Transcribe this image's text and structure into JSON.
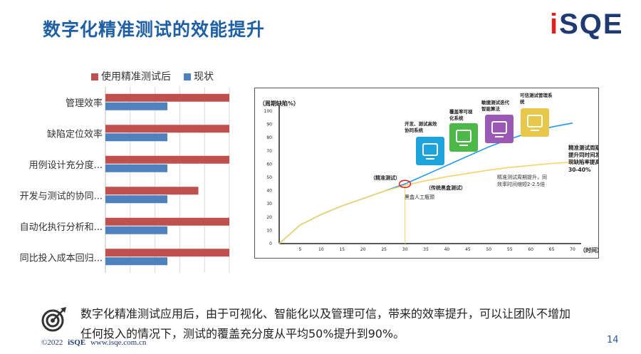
{
  "header": {
    "title": "数字化精准测试的效能提升"
  },
  "logo": {
    "text_main": "iSQE",
    "color": "#1f3a73",
    "dot_color": "#e02020"
  },
  "chart_data": [
    {
      "type": "bar",
      "orientation": "horizontal",
      "categories": [
        "管理效率",
        "缺陷定位效率",
        "用例设计充分度...",
        "开发与测试的协同...",
        "自动化执行分析和...",
        "同比投入成本回归..."
      ],
      "series": [
        {
          "name": "使用精准测试后",
          "color": "#c0504d",
          "values": [
            100,
            100,
            100,
            75,
            100,
            100
          ]
        },
        {
          "name": "现状",
          "color": "#4f81bd",
          "values": [
            50,
            50,
            50,
            50,
            50,
            50
          ]
        }
      ],
      "xlim": [
        0,
        100
      ],
      "grid": true,
      "legend_position": "top"
    },
    {
      "type": "line",
      "ylabel": "（周期缺陷%）",
      "xlabel": "（时间）",
      "xlim": [
        0,
        70
      ],
      "ylim": [
        0,
        100
      ],
      "x_ticks": [
        5,
        10,
        15,
        20,
        25,
        30,
        35,
        40,
        45,
        50,
        55,
        60,
        65,
        70
      ],
      "y_ticks": [
        0,
        10,
        20,
        30,
        40,
        50,
        60,
        70,
        80,
        90,
        100
      ],
      "series": [
        {
          "name": "精准测试",
          "color": "#2196f3",
          "x": [
            0,
            5,
            10,
            15,
            20,
            25,
            30,
            35,
            40,
            45,
            50,
            55,
            60,
            65,
            70
          ],
          "y": [
            0,
            14,
            22,
            28.5,
            34,
            39.5,
            45,
            52,
            59,
            66,
            73,
            79,
            84,
            88,
            91
          ]
        },
        {
          "name": "传统黑盒测试",
          "color": "#f5d36b",
          "x": [
            0,
            5,
            10,
            15,
            20,
            25,
            30,
            35,
            40,
            45,
            50,
            55,
            60,
            65,
            70
          ],
          "y": [
            0,
            14,
            22,
            28.5,
            34,
            39.5,
            44,
            47.5,
            50.5,
            53,
            55.5,
            57.5,
            59,
            60.5,
            61.5
          ]
        }
      ],
      "markers": {
        "crossover_x": 30,
        "crossover_y": 45,
        "vertical_line_x": 30
      },
      "annotations": {
        "precise": "（精准测试）",
        "traditional": "（传统黑盒测试）",
        "bottleneck": "黑盒人工瓶颈",
        "cycle_line1": "精准测试周期提升，同",
        "cycle_line2": "效率时间缩短2-2.5倍",
        "right_line1": "精准测试周期，",
        "right_line2": "提升同时间发",
        "right_line3": "现缺陷率提高",
        "right_line4": "30-40%"
      },
      "feature_icons": [
        {
          "line1": "开发、测试高效",
          "line2": "协同系统",
          "color": "#1fa3dc",
          "icon": "collaboration-icon"
        },
        {
          "line1": "覆盖率可视",
          "line2": "化系统",
          "color": "#4cb848",
          "icon": "coverage-icon"
        },
        {
          "line1": "敏捷测试迭代",
          "line2": "智能算法",
          "color": "#9b59b6",
          "icon": "algorithm-icon"
        },
        {
          "line1": "可信测试管理系",
          "line2": "统",
          "color": "#e8c84a",
          "icon": "management-icon"
        }
      ]
    }
  ],
  "summary": {
    "line1": "数字化精准测试应用后，由于可视化、智能化以及管理可信，带来的效率提升，可以让团队不增加",
    "line2": "任何投入的情况下，测试的覆盖充分度从平均50%提升到90%。",
    "icon": "target-icon"
  },
  "footer": {
    "copyright": "©2022",
    "brand": "iSQE",
    "url": "www.isqe.com.cn"
  },
  "page": {
    "number": "14"
  }
}
